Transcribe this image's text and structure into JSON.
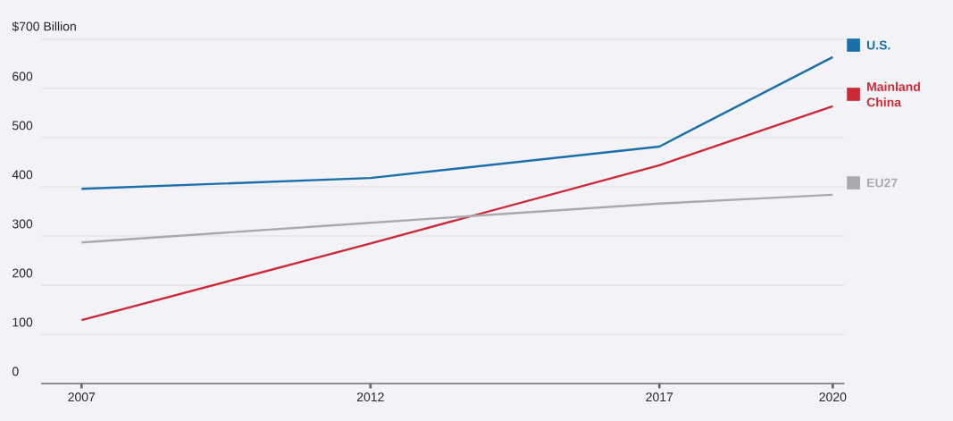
{
  "chart_data": {
    "type": "line",
    "x": [
      2007,
      2012,
      2017,
      2020
    ],
    "series": [
      {
        "name": "U.S.",
        "color": "#1a6fa8",
        "values": [
          396,
          418,
          482,
          664
        ]
      },
      {
        "name": "Mainland China",
        "color": "#cc2936",
        "values": [
          129,
          285,
          444,
          564
        ]
      },
      {
        "name": "EU27",
        "color": "#a9a9ae",
        "values": [
          287,
          327,
          366,
          384
        ]
      }
    ],
    "xlim": [
      2006.3,
      2020.2
    ],
    "xticks": [
      2007,
      2012,
      2017,
      2020
    ],
    "ylim": [
      0,
      700
    ],
    "yticks": [
      0,
      100,
      200,
      300,
      400,
      500,
      600,
      {
        "value": 700,
        "label": "$700 Billion"
      }
    ],
    "grid": "y",
    "legend": "right",
    "marker": "none",
    "line_style": "solid"
  }
}
